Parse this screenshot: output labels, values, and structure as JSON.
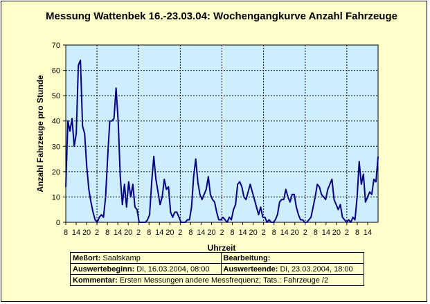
{
  "chart_data": {
    "type": "line",
    "title": "Messung Wattenbek 16.-23.03.04: Wochengangkurve Anzahl Fahrzeuge",
    "xlabel": "Uhrzeit",
    "ylabel": "Anzahl Fahrzeuge pro Stunde",
    "ylim": [
      0,
      70
    ],
    "yticks": [
      "0",
      "10",
      "20",
      "30",
      "40",
      "50",
      "60",
      "70"
    ],
    "xtick_labels": [
      "8",
      "14",
      "20",
      "2",
      "8",
      "14",
      "20",
      "2",
      "8",
      "14",
      "20",
      "2",
      "8",
      "14",
      "20",
      "2",
      "8",
      "14",
      "20",
      "2",
      "8",
      "14",
      "20",
      "2",
      "8",
      "14",
      "20",
      "2",
      "8",
      "14"
    ],
    "grid": true,
    "plot_background": "#cceeff",
    "line_color": "#000080",
    "series": [
      {
        "values": [
          14,
          40,
          36,
          41,
          30,
          35,
          62,
          64,
          38,
          35,
          22,
          13,
          8,
          4,
          1,
          0,
          2,
          3,
          2,
          10,
          26,
          40,
          40,
          41,
          53,
          40,
          18,
          7,
          15,
          6,
          16,
          10,
          15,
          6,
          5,
          0,
          0,
          0,
          0,
          1,
          3,
          16,
          26,
          17,
          12,
          7,
          10,
          17,
          13,
          14,
          4,
          2,
          4,
          4,
          2,
          0,
          0,
          0,
          1,
          1,
          6,
          18,
          25,
          16,
          11,
          9,
          11,
          13,
          18,
          11,
          9,
          8,
          4,
          1,
          1,
          2,
          1,
          0,
          2,
          1,
          5,
          7,
          15,
          16,
          14,
          10,
          9,
          12,
          15,
          12,
          9,
          6,
          3,
          6,
          2,
          2,
          0,
          1,
          0,
          0,
          1,
          3,
          8,
          9,
          9,
          13,
          10,
          8,
          11,
          11,
          6,
          3,
          1,
          1,
          0,
          0,
          1,
          2,
          6,
          10,
          15,
          14,
          11,
          10,
          9,
          13,
          15,
          17,
          9,
          7,
          5,
          7,
          2,
          1,
          0,
          1,
          0,
          2,
          1,
          10,
          24,
          15,
          19,
          8,
          10,
          12,
          11,
          17,
          16,
          26
        ]
      }
    ]
  },
  "info": {
    "messort_label": "Meßort:",
    "messort_value": "Saalskamp",
    "bearbeitung_label": "Bearbeitung:",
    "bearbeitung_value": "",
    "beginn_label": "Auswertebeginn:",
    "beginn_value": "Di, 16.03.2004, 08:00",
    "ende_label": "Auswerteende:",
    "ende_value": "Di, 23.03.2004, 18:00",
    "kommentar_label": "Kommentar:",
    "kommentar_value": "Ersten Messungen andere Messfrequenz; Tats.: Fahrzeuge /2"
  }
}
